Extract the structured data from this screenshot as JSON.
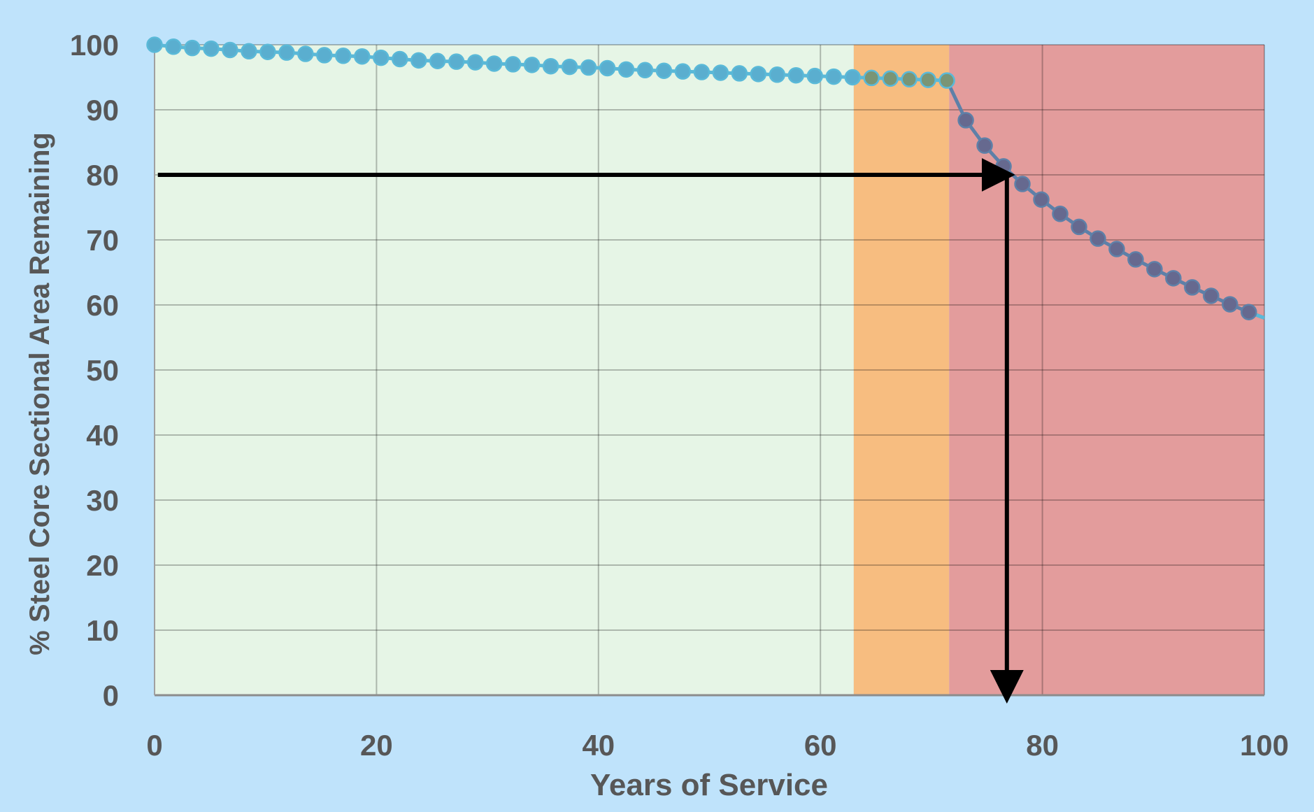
{
  "chart_data": {
    "type": "line",
    "title": "",
    "xlabel": "Years of Service",
    "ylabel": "% Steel Core Sectional Area Remaining",
    "xlim": [
      0,
      100
    ],
    "ylim": [
      0,
      100
    ],
    "x_ticks": [
      "0",
      "20",
      "40",
      "60",
      "80",
      "100"
    ],
    "y_ticks": [
      "0",
      "10",
      "20",
      "30",
      "40",
      "50",
      "60",
      "70",
      "80",
      "90",
      "100"
    ],
    "grid": true,
    "legend": "none",
    "zones": [
      {
        "from": 0,
        "to": 63,
        "color": "#e6f5e6"
      },
      {
        "from": 63,
        "to": 71.6,
        "color": "#f7bd80"
      },
      {
        "from": 71.6,
        "to": 100,
        "color": "#e39c9c"
      }
    ],
    "series": [
      {
        "line_color": "#5ab9d8",
        "marker_color": "#5aaecf",
        "x": [
          0,
          1.7,
          3.4,
          5.1,
          6.8,
          8.5,
          10.2,
          11.9,
          13.6,
          15.3,
          17.0,
          18.7,
          20.4,
          22.1,
          23.8,
          25.5,
          27.2,
          28.9,
          30.6,
          32.3,
          34.0,
          35.7,
          37.4,
          39.1,
          40.8,
          42.5,
          44.2,
          45.9,
          47.6,
          49.3,
          51.0,
          52.7,
          54.4,
          56.1,
          57.8,
          59.5,
          61.2,
          62.9
        ],
        "y": [
          100,
          99.7,
          99.5,
          99.4,
          99.2,
          99.0,
          98.9,
          98.8,
          98.6,
          98.4,
          98.3,
          98.2,
          98.0,
          97.8,
          97.6,
          97.5,
          97.4,
          97.3,
          97.1,
          97.0,
          96.9,
          96.7,
          96.6,
          96.5,
          96.4,
          96.2,
          96.1,
          96.0,
          95.9,
          95.8,
          95.7,
          95.6,
          95.5,
          95.4,
          95.3,
          95.2,
          95.1,
          95.0
        ]
      },
      {
        "line_color": "#5ab9d8",
        "marker_color": "#7a9575",
        "x": [
          64.6,
          66.3,
          68.0,
          69.7,
          71.4
        ],
        "y": [
          94.9,
          94.8,
          94.7,
          94.6,
          94.5
        ]
      },
      {
        "line_color": "#5e80a8",
        "marker_color": "#66698f",
        "x": [
          73.1,
          74.8,
          76.5,
          78.2,
          79.9,
          81.6,
          83.3,
          85.0,
          86.7,
          88.4,
          90.1,
          91.8,
          93.5,
          95.2,
          96.9,
          98.6
        ],
        "y": [
          88.4,
          84.5,
          81.3,
          78.6,
          76.2,
          74.0,
          72.0,
          70.2,
          68.6,
          67.0,
          65.5,
          64.1,
          62.7,
          61.4,
          60.1,
          58.9
        ]
      }
    ],
    "line_end": {
      "x": 100,
      "y": 58.0
    },
    "annotations": [
      {
        "type": "arrow",
        "from": [
          0.3,
          80
        ],
        "to": [
          76.8,
          80
        ],
        "color": "#000000"
      },
      {
        "type": "arrow",
        "from": [
          76.8,
          80
        ],
        "to": [
          76.8,
          0
        ],
        "color": "#000000"
      }
    ]
  }
}
